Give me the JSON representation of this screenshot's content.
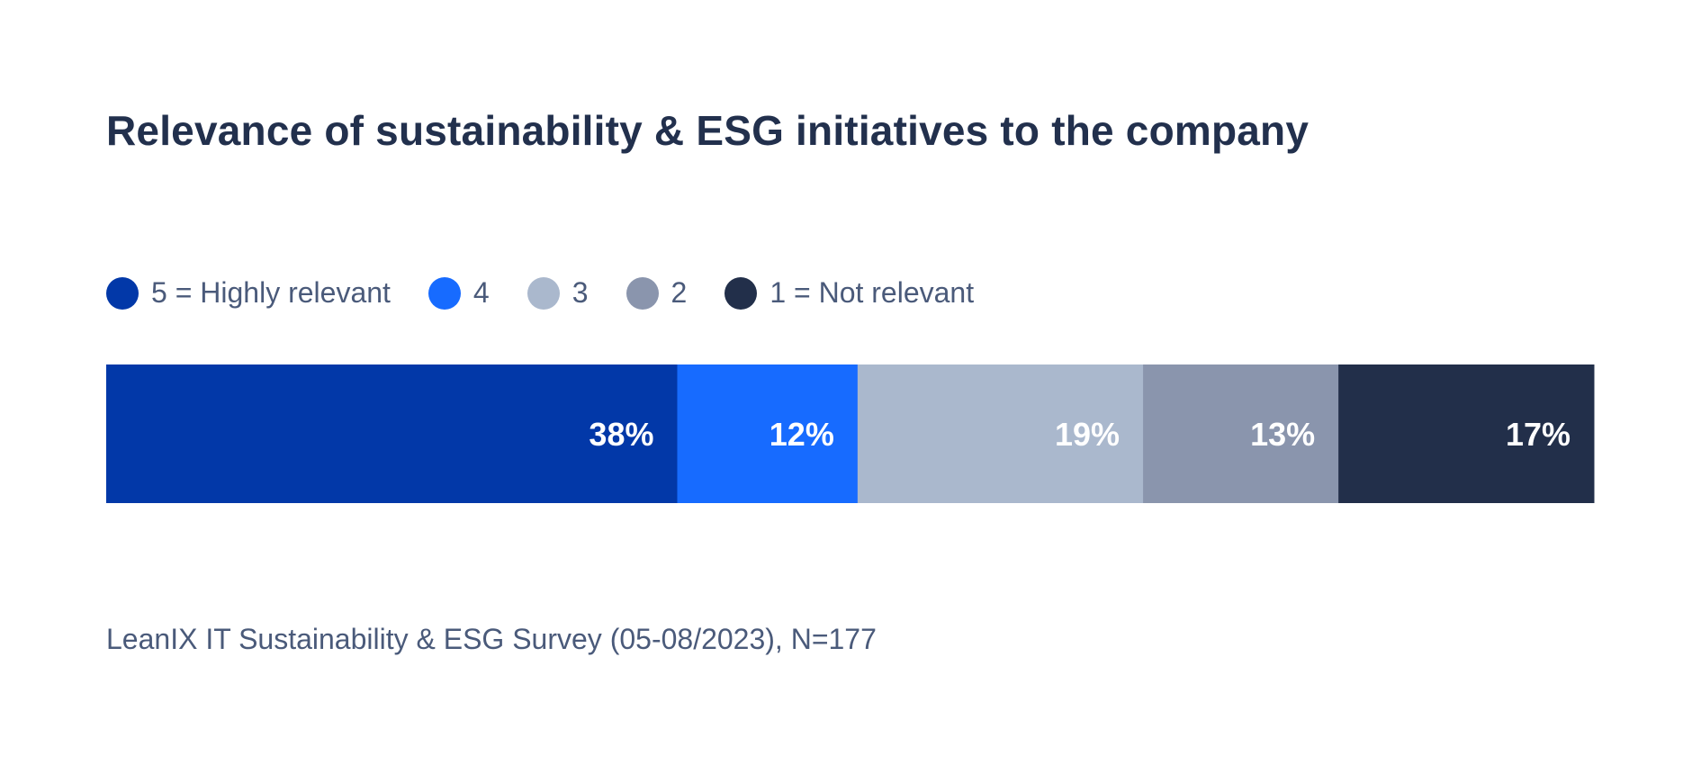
{
  "chart_data": {
    "type": "bar",
    "orientation": "horizontal-stacked",
    "title": "Relevance of sustainability & ESG initiatives to the company",
    "categories": [
      "5 = Highly relevant",
      "4",
      "3",
      "2",
      "1 = Not relevant"
    ],
    "values": [
      38,
      12,
      19,
      13,
      17
    ],
    "labels": [
      "38%",
      "12%",
      "19%",
      "13%",
      "17%"
    ],
    "colors": [
      "#0238a8",
      "#176bff",
      "#aab8cd",
      "#8a95ad",
      "#222f4a"
    ],
    "unit": "%",
    "legend_placement": "top-left",
    "grid": false,
    "source": "LeanIX IT Sustainability & ESG Survey (05-08/2023), N=177"
  }
}
